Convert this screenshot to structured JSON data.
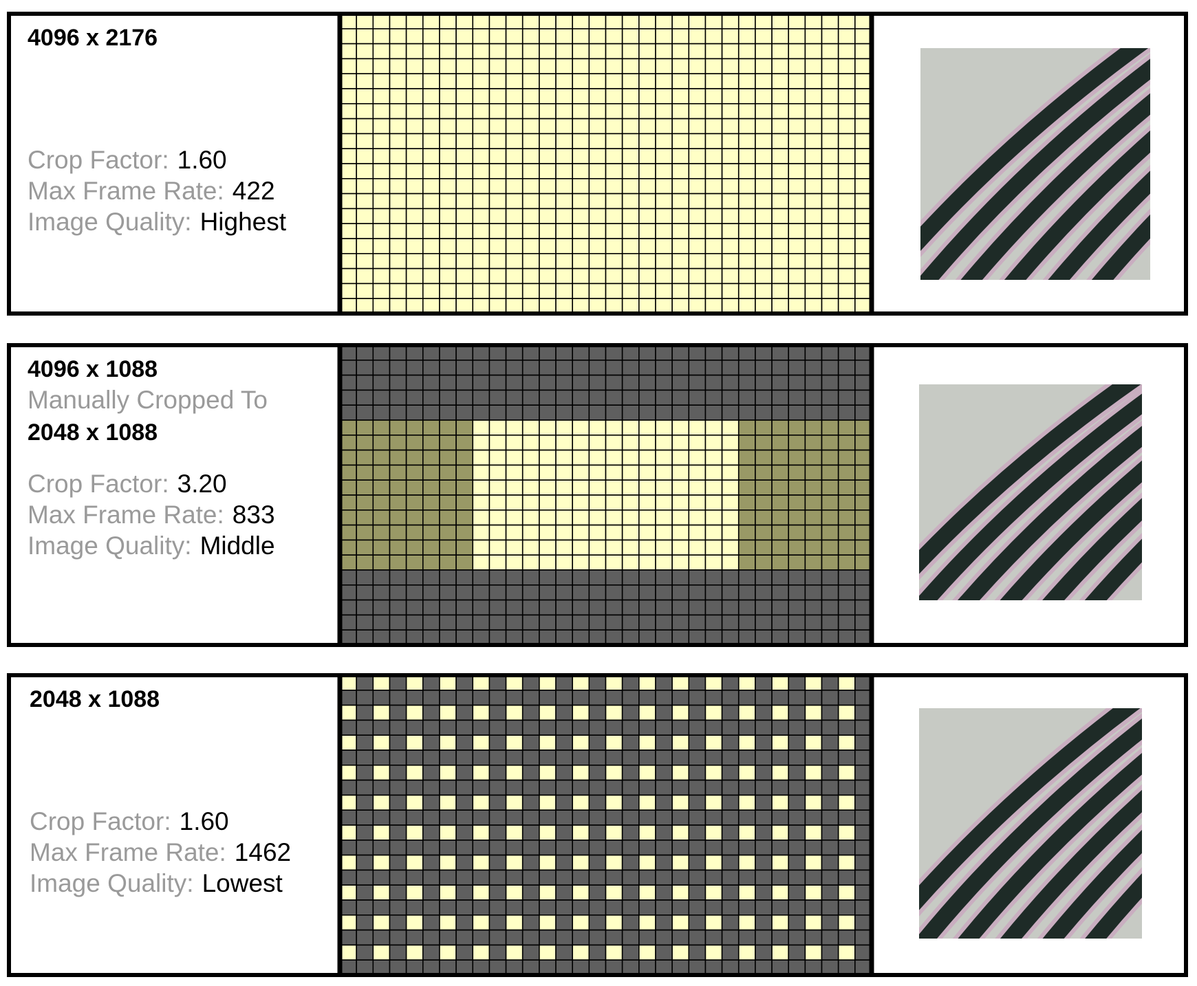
{
  "panels": [
    {
      "title": "4096 x 2176",
      "lines": [
        {
          "label": "Crop Factor:",
          "value": "1.60"
        },
        {
          "label": "Max Frame Rate:",
          "value": "422"
        },
        {
          "label": "Image Quality:",
          "value": "Highest"
        }
      ]
    },
    {
      "title": "4096 x 1088",
      "subtitle": "Manually Cropped To",
      "title2": "2048 x 1088",
      "lines": [
        {
          "label": "Crop Factor:",
          "value": "3.20"
        },
        {
          "label": "Max Frame Rate:",
          "value": "833"
        },
        {
          "label": "Image Quality:",
          "value": "Middle"
        }
      ]
    },
    {
      "title": "2048 x 1088",
      "lines": [
        {
          "label": "Crop Factor:",
          "value": "1.60"
        },
        {
          "label": "Max Frame Rate:",
          "value": "1462"
        },
        {
          "label": "Image Quality:",
          "value": "Lowest"
        }
      ]
    }
  ]
}
